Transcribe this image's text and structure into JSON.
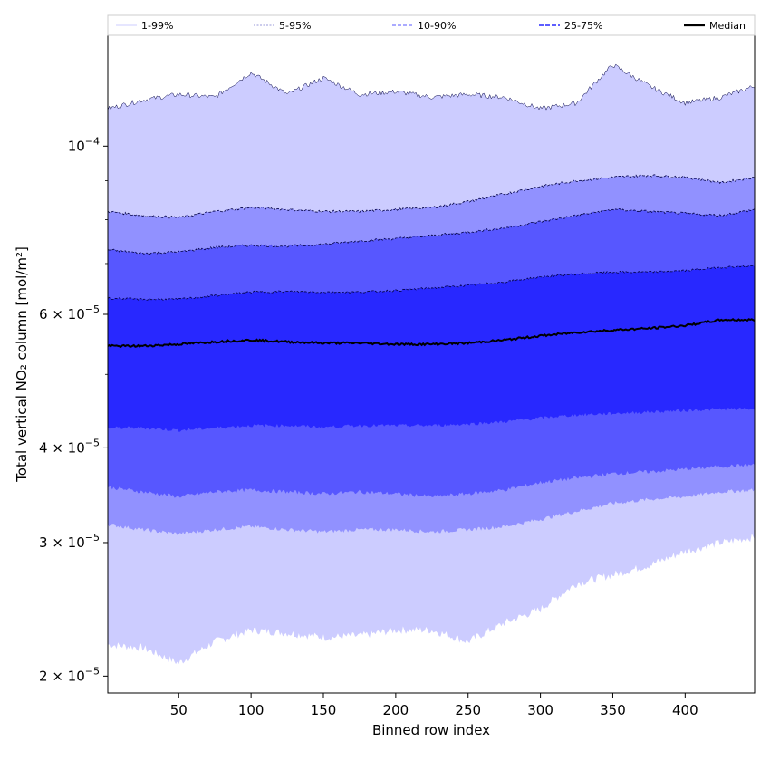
{
  "chart_data": {
    "type": "area",
    "xlabel": "Binned row index",
    "ylabel": "Total vertical NO₂ column [mol/m²]",
    "xlim": [
      1,
      448
    ],
    "ylim": [
      1.9e-05,
      0.00014
    ],
    "yscale": "log",
    "x_ticks": [
      50,
      100,
      150,
      200,
      250,
      300,
      350,
      400
    ],
    "y_ticks": [
      {
        "value": 2e-05,
        "mantissa": "2",
        "exponent": "−5"
      },
      {
        "value": 3e-05,
        "mantissa": "3",
        "exponent": "−5"
      },
      {
        "value": 4e-05,
        "mantissa": "4",
        "exponent": "−5"
      },
      {
        "value": 6e-05,
        "mantissa": "6",
        "exponent": "−5"
      },
      {
        "value": 0.0001,
        "mantissa": "",
        "exponent": "−4"
      }
    ],
    "legend": {
      "placement": "top",
      "entries": [
        "1-99%",
        "5-95%",
        "10-90%",
        "25-75%",
        "Median"
      ]
    },
    "grid": false,
    "colors": {
      "1-99%": "#ccccff",
      "5-95%": "#9191ff",
      "10-90%": "#5757ff",
      "25-75%": "#2828ff",
      "median": "#000000"
    },
    "x": [
      1,
      25,
      50,
      75,
      100,
      125,
      150,
      175,
      200,
      225,
      250,
      275,
      300,
      325,
      350,
      375,
      400,
      425,
      448
    ],
    "series": [
      {
        "name": "1-99%",
        "lower": [
          2.2e-05,
          2.18e-05,
          2.08e-05,
          2.22e-05,
          2.3e-05,
          2.28e-05,
          2.25e-05,
          2.26e-05,
          2.3e-05,
          2.3e-05,
          2.22e-05,
          2.35e-05,
          2.45e-05,
          2.65e-05,
          2.72e-05,
          2.8e-05,
          2.92e-05,
          3e-05,
          3.05e-05
        ],
        "upper": [
          0.000112,
          0.000115,
          0.000117,
          0.000116,
          0.000125,
          0.000117,
          0.000123,
          0.000117,
          0.000118,
          0.000116,
          0.000117,
          0.000116,
          0.000112,
          0.000114,
          0.000128,
          0.00012,
          0.000114,
          0.000116,
          0.00012
        ]
      },
      {
        "name": "5-95%",
        "lower": [
          3.17e-05,
          3.12e-05,
          3.08e-05,
          3.12e-05,
          3.15e-05,
          3.12e-05,
          3.1e-05,
          3.12e-05,
          3.12e-05,
          3.1e-05,
          3.12e-05,
          3.15e-05,
          3.22e-05,
          3.3e-05,
          3.38e-05,
          3.42e-05,
          3.45e-05,
          3.5e-05,
          3.52e-05
        ],
        "upper": [
          8.2e-05,
          8.1e-05,
          8.05e-05,
          8.2e-05,
          8.3e-05,
          8.25e-05,
          8.2e-05,
          8.2e-05,
          8.25e-05,
          8.3e-05,
          8.45e-05,
          8.65e-05,
          8.85e-05,
          9e-05,
          9.1e-05,
          9.15e-05,
          9.1e-05,
          8.95e-05,
          9.1e-05
        ]
      },
      {
        "name": "10-90%",
        "lower": [
          3.55e-05,
          3.5e-05,
          3.45e-05,
          3.5e-05,
          3.52e-05,
          3.5e-05,
          3.48e-05,
          3.5e-05,
          3.48e-05,
          3.45e-05,
          3.48e-05,
          3.52e-05,
          3.6e-05,
          3.65e-05,
          3.7e-05,
          3.72e-05,
          3.75e-05,
          3.78e-05,
          3.8e-05
        ],
        "upper": [
          7.3e-05,
          7.22e-05,
          7.25e-05,
          7.35e-05,
          7.4e-05,
          7.38e-05,
          7.42e-05,
          7.5e-05,
          7.55e-05,
          7.62e-05,
          7.7e-05,
          7.8e-05,
          7.95e-05,
          8.1e-05,
          8.25e-05,
          8.2e-05,
          8.15e-05,
          8.1e-05,
          8.25e-05
        ]
      },
      {
        "name": "25-75%",
        "lower": [
          4.25e-05,
          4.25e-05,
          4.22e-05,
          4.25e-05,
          4.28e-05,
          4.28e-05,
          4.26e-05,
          4.28e-05,
          4.28e-05,
          4.28e-05,
          4.3e-05,
          4.33e-05,
          4.38e-05,
          4.42e-05,
          4.44e-05,
          4.46e-05,
          4.48e-05,
          4.5e-05,
          4.5e-05
        ],
        "upper": [
          6.3e-05,
          6.28e-05,
          6.28e-05,
          6.35e-05,
          6.42e-05,
          6.43e-05,
          6.42e-05,
          6.42e-05,
          6.45e-05,
          6.5e-05,
          6.55e-05,
          6.62e-05,
          6.72e-05,
          6.78e-05,
          6.82e-05,
          6.82e-05,
          6.85e-05,
          6.92e-05,
          6.95e-05
        ]
      },
      {
        "name": "Median",
        "values": [
          5.45e-05,
          5.45e-05,
          5.48e-05,
          5.52e-05,
          5.55e-05,
          5.52e-05,
          5.5e-05,
          5.5e-05,
          5.48e-05,
          5.48e-05,
          5.5e-05,
          5.55e-05,
          5.62e-05,
          5.68e-05,
          5.72e-05,
          5.75e-05,
          5.8e-05,
          5.9e-05,
          5.9e-05
        ]
      }
    ]
  }
}
